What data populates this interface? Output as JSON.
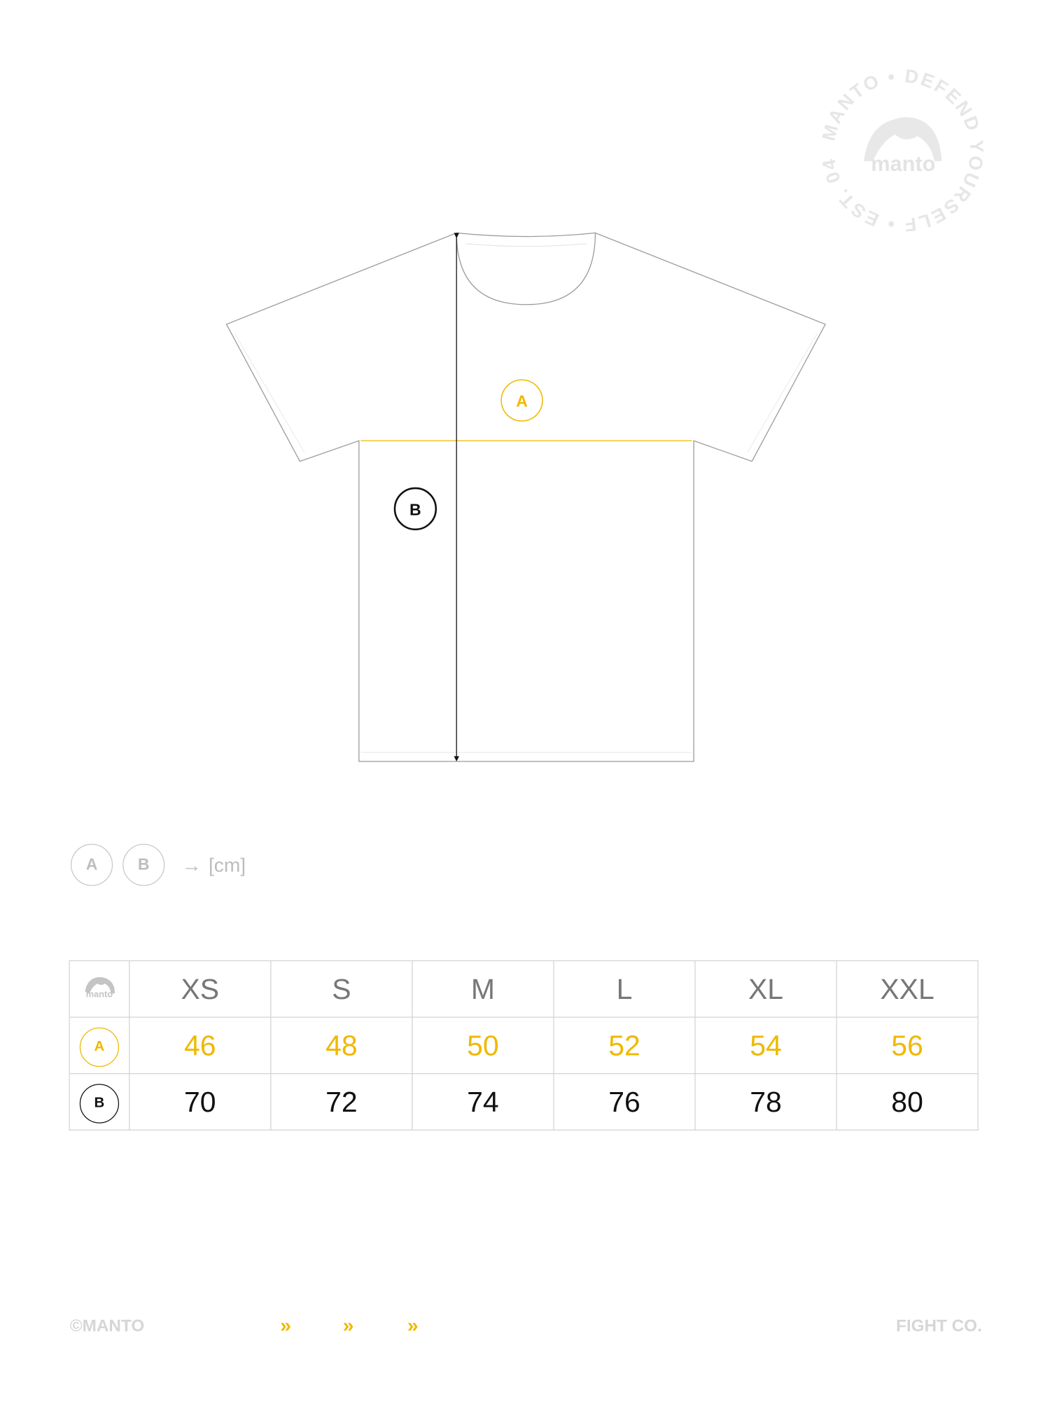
{
  "stamp": {
    "ring_text": "MANTO • DEFEND YOURSELF • EST. 04 •",
    "logo_text": "manto"
  },
  "diagram": {
    "label_a": "A",
    "label_b": "B",
    "accent_color": "#f0b800"
  },
  "legend": {
    "a": "A",
    "b": "B",
    "arrow": "→",
    "unit": "[cm]"
  },
  "table": {
    "logo_text": "manto",
    "sizes": [
      "XS",
      "S",
      "M",
      "L",
      "XL",
      "XXL"
    ],
    "rows": [
      {
        "label": "A",
        "values": [
          "46",
          "48",
          "50",
          "52",
          "54",
          "56"
        ]
      },
      {
        "label": "B",
        "values": [
          "70",
          "72",
          "74",
          "76",
          "78",
          "80"
        ]
      }
    ]
  },
  "footer": {
    "left": "©MANTO",
    "right": "FIGHT CO.",
    "chevron": "»"
  }
}
